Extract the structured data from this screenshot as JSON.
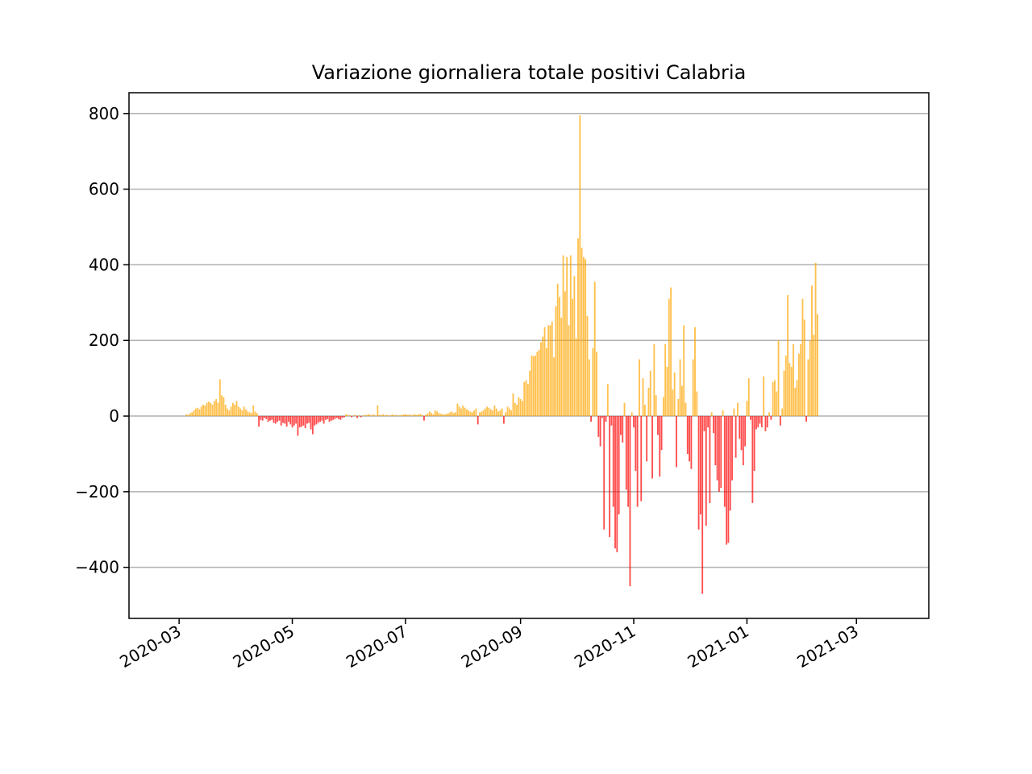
{
  "chart_data": {
    "type": "bar",
    "title": "Variazione giornaliera totale positivi Calabria",
    "xlabel": "",
    "ylabel": "",
    "ylim": [
      -535,
      855
    ],
    "xlim": [
      "2020-02-03",
      "2021-04-09"
    ],
    "grid": "y",
    "legend": "none",
    "colors": {
      "positive": "#FFA500",
      "negative": "#FF0000",
      "grid": "#b0b0b0",
      "zero_line": "#b0b0b0"
    },
    "yticks": [
      {
        "value": 800,
        "label": "800"
      },
      {
        "value": 600,
        "label": "600"
      },
      {
        "value": 400,
        "label": "400"
      },
      {
        "value": 200,
        "label": "200"
      },
      {
        "value": 0,
        "label": "0"
      },
      {
        "value": -200,
        "label": "−200"
      },
      {
        "value": -400,
        "label": "−400"
      }
    ],
    "xticks": [
      {
        "date": "2020-03-01",
        "label": "2020-03"
      },
      {
        "date": "2020-05-01",
        "label": "2020-05"
      },
      {
        "date": "2020-07-01",
        "label": "2020-07"
      },
      {
        "date": "2020-09-01",
        "label": "2020-09"
      },
      {
        "date": "2020-11-01",
        "label": "2020-11"
      },
      {
        "date": "2021-01-01",
        "label": "2021-01"
      },
      {
        "date": "2021-03-01",
        "label": "2021-03"
      }
    ],
    "series": [
      {
        "start_date": "2020-03-05",
        "step": "1 day",
        "values": [
          5,
          3,
          8,
          10,
          15,
          20,
          22,
          18,
          25,
          30,
          28,
          35,
          38,
          35,
          30,
          40,
          45,
          35,
          97,
          55,
          50,
          30,
          20,
          15,
          25,
          35,
          30,
          40,
          25,
          20,
          15,
          25,
          18,
          12,
          10,
          8,
          28,
          12,
          8,
          -28,
          -10,
          -12,
          -5,
          -8,
          -15,
          -12,
          -10,
          -18,
          -20,
          -15,
          -12,
          -25,
          -18,
          -20,
          -28,
          -15,
          -22,
          -30,
          -25,
          -20,
          -52,
          -30,
          -28,
          -25,
          -32,
          -20,
          -18,
          -35,
          -48,
          -25,
          -22,
          -18,
          -15,
          -12,
          -20,
          -10,
          -8,
          -15,
          -12,
          -10,
          -8,
          -5,
          -8,
          -10,
          -5,
          -3,
          5,
          3,
          2,
          -3,
          1,
          3,
          -5,
          2,
          -3,
          1,
          3,
          2,
          5,
          3,
          2,
          4,
          1,
          28,
          3,
          2,
          5,
          2,
          3,
          1,
          3,
          4,
          2,
          3,
          1,
          2,
          3,
          4,
          5,
          3,
          4,
          2,
          3,
          5,
          3,
          4,
          6,
          3,
          -12,
          4,
          7,
          12,
          8,
          5,
          15,
          12,
          8,
          6,
          5,
          4,
          6,
          7,
          10,
          12,
          8,
          10,
          33,
          25,
          20,
          28,
          22,
          18,
          15,
          12,
          10,
          15,
          20,
          -22,
          10,
          12,
          15,
          20,
          25,
          22,
          18,
          15,
          28,
          20,
          12,
          15,
          20,
          -20,
          10,
          25,
          20,
          15,
          60,
          35,
          30,
          50,
          45,
          40,
          90,
          95,
          85,
          120,
          160,
          158,
          160,
          170,
          175,
          195,
          210,
          235,
          180,
          240,
          240,
          250,
          155,
          290,
          350,
          315,
          260,
          425,
          330,
          420,
          240,
          425,
          310,
          370,
          205,
          470,
          795,
          445,
          420,
          415,
          265,
          150,
          -15,
          180,
          355,
          170,
          -55,
          -80,
          -5,
          -300,
          -15,
          85,
          -320,
          -25,
          -240,
          -350,
          -360,
          -260,
          -50,
          -70,
          35,
          -195,
          -240,
          -450,
          10,
          -30,
          -145,
          -240,
          150,
          -225,
          100,
          30,
          -120,
          75,
          120,
          -165,
          190,
          55,
          -50,
          -160,
          -90,
          50,
          190,
          130,
          310,
          340,
          70,
          115,
          -135,
          45,
          150,
          80,
          240,
          35,
          -100,
          -120,
          -140,
          150,
          235,
          65,
          -300,
          -260,
          -470,
          -40,
          -290,
          -30,
          -230,
          10,
          -45,
          -130,
          -170,
          -200,
          -190,
          15,
          -240,
          -340,
          -335,
          -250,
          -170,
          20,
          -110,
          35,
          -60,
          -90,
          -130,
          -80,
          40,
          100,
          -10,
          -230,
          -145,
          -35,
          -30,
          -20,
          -30,
          105,
          -40,
          -30,
          10,
          -10,
          90,
          95,
          65,
          200,
          -25,
          20,
          120,
          160,
          320,
          140,
          130,
          190,
          75,
          95,
          165,
          190,
          310,
          255,
          -15,
          150,
          200,
          345,
          215,
          405,
          270
        ]
      }
    ]
  }
}
